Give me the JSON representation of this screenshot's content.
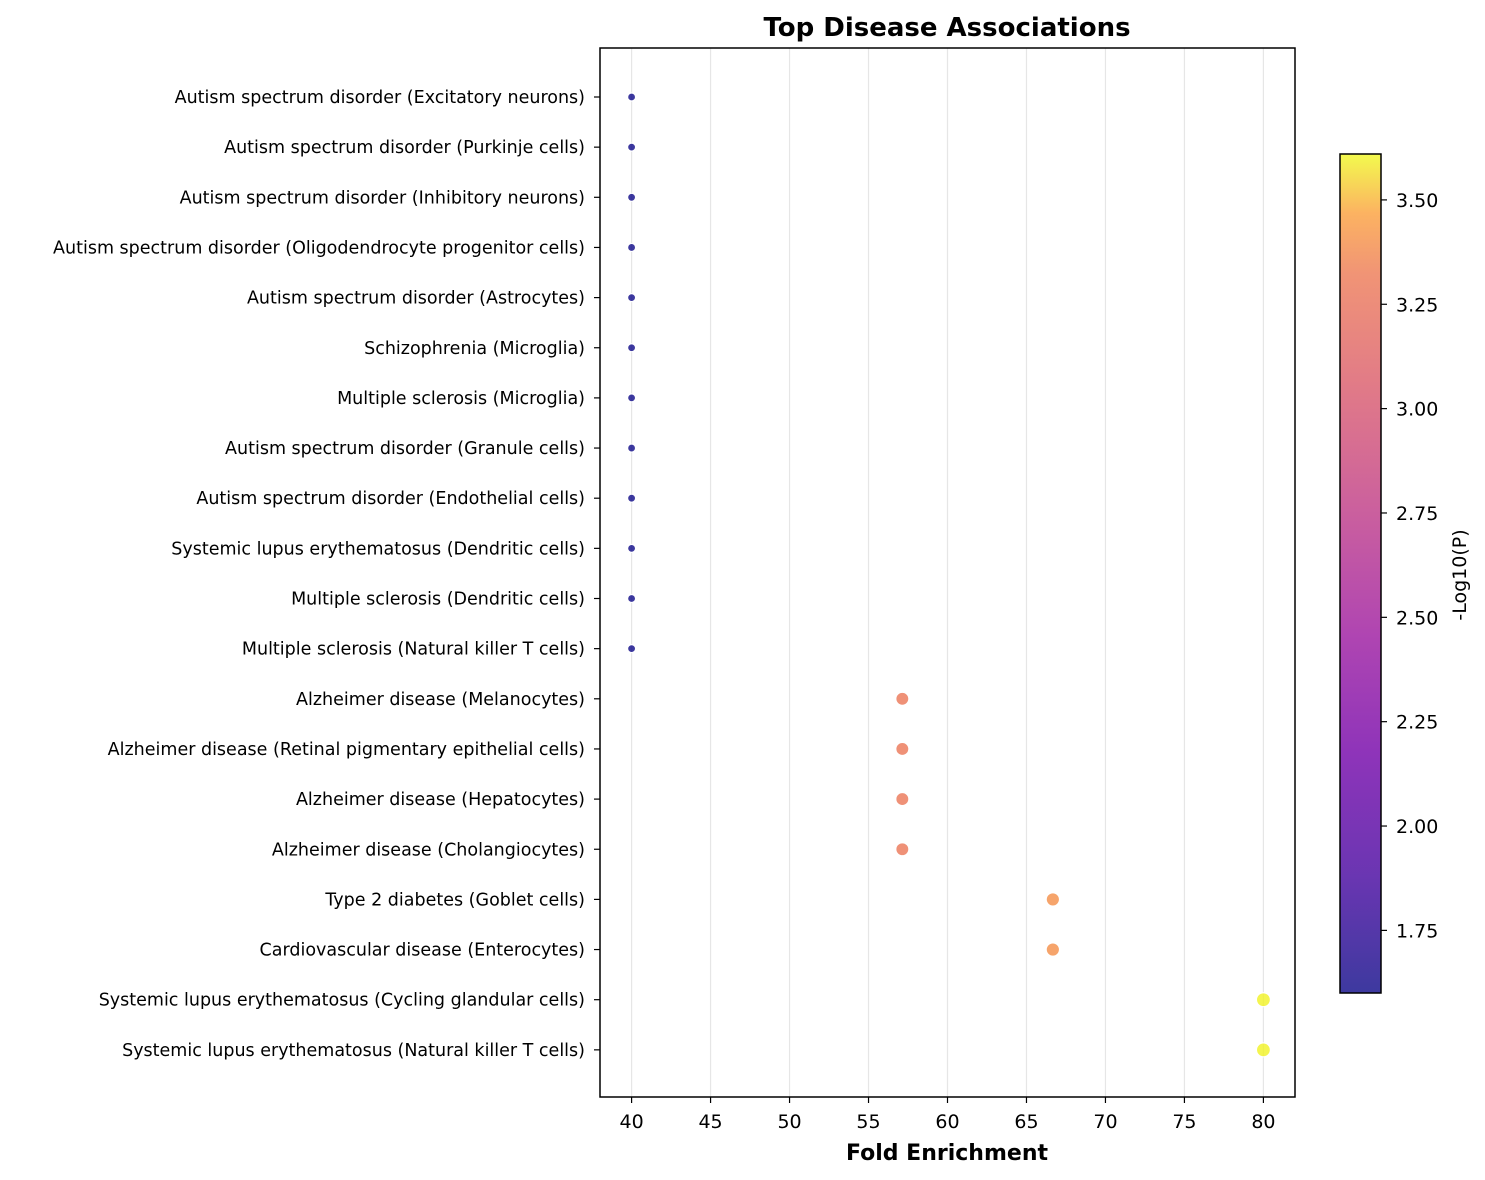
{
  "chart_data": {
    "type": "scatter",
    "title": "Top Disease Associations",
    "xlabel": "Fold Enrichment",
    "xlim": [
      38,
      82
    ],
    "xticks": [
      40,
      45,
      50,
      55,
      60,
      65,
      70,
      75,
      80
    ],
    "grid": "vertical",
    "colormap": "plasma",
    "colorbar": {
      "label": "-Log10(P)",
      "range": [
        1.6,
        3.61
      ],
      "ticks": [
        "1.75",
        "2.00",
        "2.25",
        "2.50",
        "2.75",
        "3.00",
        "3.25",
        "3.50"
      ]
    },
    "categories": [
      "Autism spectrum disorder (Excitatory neurons)",
      "Autism spectrum disorder (Purkinje cells)",
      "Autism spectrum disorder (Inhibitory neurons)",
      "Autism spectrum disorder (Oligodendrocyte progenitor cells)",
      "Autism spectrum disorder (Astrocytes)",
      "Schizophrenia (Microglia)",
      "Multiple sclerosis (Microglia)",
      "Autism spectrum disorder (Granule cells)",
      "Autism spectrum disorder (Endothelial cells)",
      "Systemic lupus erythematosus (Dendritic cells)",
      "Multiple sclerosis (Dendritic cells)",
      "Multiple sclerosis (Natural killer T cells)",
      "Alzheimer disease (Melanocytes)",
      "Alzheimer disease (Retinal pigmentary epithelial cells)",
      "Alzheimer disease (Hepatocytes)",
      "Alzheimer disease (Cholangiocytes)",
      "Type 2 diabetes (Goblet cells)",
      "Cardiovascular disease (Enterocytes)",
      "Systemic lupus erythematosus (Cycling glandular cells)",
      "Systemic lupus erythematosus (Natural killer T cells)"
    ],
    "fold_enrichment": [
      40,
      40,
      40,
      40,
      40,
      40,
      40,
      40,
      40,
      40,
      40,
      40,
      57.14,
      57.14,
      57.14,
      57.14,
      66.67,
      66.67,
      80,
      80
    ],
    "neg_log10_p": [
      1.6,
      1.6,
      1.6,
      1.6,
      1.6,
      1.6,
      1.6,
      1.6,
      1.6,
      1.6,
      1.6,
      1.6,
      3.3,
      3.3,
      3.3,
      3.3,
      3.4,
      3.4,
      3.6,
      3.6
    ]
  }
}
